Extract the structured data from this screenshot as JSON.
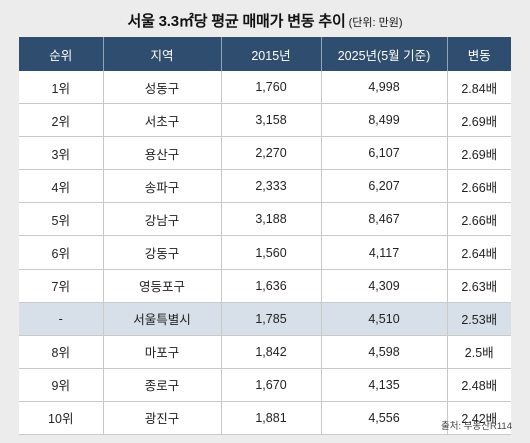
{
  "title": {
    "main": "서울 3.3㎡당 평균 매매가 변동 추이",
    "unit": "(단위: 만원)"
  },
  "table": {
    "headers": [
      "순위",
      "지역",
      "2015년",
      "2025년(5월 기준)",
      "변동"
    ],
    "rows": [
      [
        "1위",
        "성동구",
        "1,760",
        "4,998",
        "2.84배"
      ],
      [
        "2위",
        "서초구",
        "3,158",
        "8,499",
        "2.69배"
      ],
      [
        "3위",
        "용산구",
        "2,270",
        "6,107",
        "2.69배"
      ],
      [
        "4위",
        "송파구",
        "2,333",
        "6,207",
        "2.66배"
      ],
      [
        "5위",
        "강남구",
        "3,188",
        "8,467",
        "2.66배"
      ],
      [
        "6위",
        "강동구",
        "1,560",
        "4,117",
        "2.64배"
      ],
      [
        "7위",
        "영등포구",
        "1,636",
        "4,309",
        "2.63배"
      ],
      [
        "-",
        "서울특별시",
        "1,785",
        "4,510",
        "2.53배"
      ],
      [
        "8위",
        "마포구",
        "1,842",
        "4,598",
        "2.5배"
      ],
      [
        "9위",
        "종로구",
        "1,670",
        "4,135",
        "2.48배"
      ],
      [
        "10위",
        "광진구",
        "1,881",
        "4,556",
        "2.42배"
      ]
    ],
    "highlight_row_index": 7
  },
  "colors": {
    "header_bg": "#2f4d6e",
    "highlight_bg": "#d7dfe9",
    "page_bg": "#ececec"
  },
  "source": "출처: 부동산R114"
}
